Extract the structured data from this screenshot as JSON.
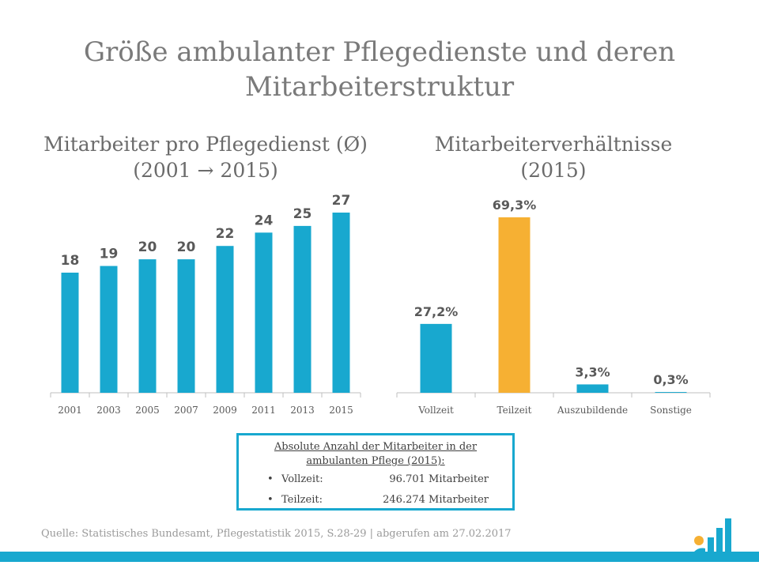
{
  "page": {
    "title_line1": "Größe ambulanter Pflegedienste und deren",
    "title_line2": "Mitarbeiterstruktur",
    "source": "Quelle: Statistisches Bundesamt, Pflegestatistik 2015, S.28-29 | abgerufen am 27.02.2017"
  },
  "chart_data": [
    {
      "type": "bar",
      "title_line1": "Mitarbeiter pro Pflegedienst (Ø)",
      "title_line2": "(2001 → 2015)",
      "categories": [
        "2001",
        "2003",
        "2005",
        "2007",
        "2009",
        "2011",
        "2013",
        "2015"
      ],
      "values": [
        18,
        19,
        20,
        20,
        22,
        24,
        25,
        27
      ],
      "value_labels": [
        "18",
        "19",
        "20",
        "20",
        "22",
        "24",
        "25",
        "27"
      ],
      "ylim": [
        0,
        27
      ],
      "bar_color": "#18a8cf",
      "grid": false
    },
    {
      "type": "bar",
      "title_line1": "Mitarbeiterverhältnisse",
      "title_line2": "(2015)",
      "categories": [
        "Vollzeit",
        "Teilzeit",
        "Auszubildende",
        "Sonstige"
      ],
      "values": [
        27.2,
        69.3,
        3.3,
        0.3
      ],
      "value_labels": [
        "27,2%",
        "69,3%",
        "3,3%",
        "0,3%"
      ],
      "ylim": [
        0,
        69.3
      ],
      "colors": [
        "#18a8cf",
        "#f6b033",
        "#18a8cf",
        "#18a8cf"
      ],
      "grid": false
    }
  ],
  "info_box": {
    "heading_line1": "Absolute Anzahl der Mitarbeiter in der",
    "heading_line2": "ambulanten Pflege (2015):",
    "rows": [
      {
        "bullet": "•",
        "label": "Vollzeit:",
        "value": "96.701 Mitarbeiter"
      },
      {
        "bullet": "•",
        "label": "Teilzeit:",
        "value": "246.274 Mitarbeiter"
      }
    ]
  },
  "colors": {
    "accent": "#18a8cf",
    "highlight": "#f6b033",
    "logo_dot": "#f6b033"
  }
}
